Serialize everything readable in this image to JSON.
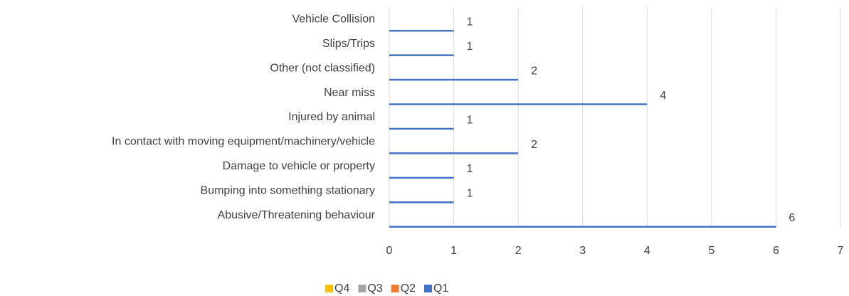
{
  "chart_data": {
    "type": "bar",
    "orientation": "horizontal",
    "categories": [
      "Vehicle Collision",
      "Slips/Trips",
      "Other (not classified)",
      "Near miss",
      "Injured by animal",
      "In contact with moving equipment/machinery/vehicle",
      "Damage to vehicle or property",
      "Bumping into something stationary",
      "Abusive/Threatening behaviour"
    ],
    "series": [
      {
        "name": "Q4",
        "color": "#ffc000",
        "values": [
          null,
          null,
          null,
          null,
          null,
          null,
          null,
          null,
          null
        ]
      },
      {
        "name": "Q3",
        "color": "#a5a5a5",
        "values": [
          null,
          null,
          null,
          null,
          null,
          null,
          null,
          null,
          null
        ]
      },
      {
        "name": "Q2",
        "color": "#ed7d31",
        "values": [
          null,
          null,
          null,
          null,
          null,
          null,
          null,
          null,
          null
        ]
      },
      {
        "name": "Q1",
        "color": "#4472c4",
        "values": [
          1,
          1,
          2,
          4,
          1,
          2,
          1,
          1,
          6
        ]
      }
    ],
    "xlim": [
      0,
      7
    ],
    "xticks": [
      0,
      1,
      2,
      3,
      4,
      5,
      6,
      7
    ],
    "grid": true,
    "legend": "bottom"
  }
}
